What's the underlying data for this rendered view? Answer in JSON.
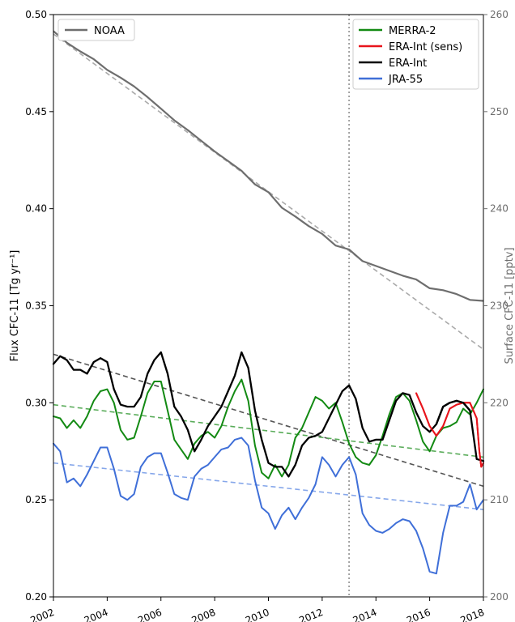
{
  "chart_data": {
    "type": "line",
    "xlabel": "",
    "ylabel": "Flux CFC-11 [Tg yr⁻¹]",
    "ylabel_right": "Surface CFC-11 [pptv]",
    "xlim": [
      2002,
      2018
    ],
    "ylim": [
      0.2,
      0.5
    ],
    "ylim_right": [
      200,
      260
    ],
    "x_ticks": [
      2002,
      2004,
      2006,
      2008,
      2010,
      2012,
      2014,
      2016,
      2018
    ],
    "y_ticks": [
      "0.20",
      "0.25",
      "0.30",
      "0.35",
      "0.40",
      "0.45",
      "0.50"
    ],
    "y_ticks_right": [
      "200",
      "210",
      "220",
      "230",
      "240",
      "250",
      "260"
    ],
    "vline_x": 2013,
    "legend_left": [
      "NOAA"
    ],
    "legend_right": [
      "MERRA-2",
      "ERA-Int (sens)",
      "ERA-Int",
      "JRA-55"
    ],
    "colors": {
      "NOAA": "#6e6e6e",
      "MERRA-2": "#138a13",
      "ERA-Int (sens)": "#e8141c",
      "ERA-Int": "#000000",
      "JRA-55": "#3f6fd8"
    },
    "noaa_axis": "right",
    "noaa": {
      "x": [
        2002.0,
        2002.5,
        2003.0,
        2003.5,
        2004.0,
        2004.5,
        2005.0,
        2005.5,
        2006.0,
        2006.5,
        2007.0,
        2007.5,
        2008.0,
        2008.5,
        2009.0,
        2009.5,
        2010.0,
        2010.5,
        2011.0,
        2011.5,
        2012.0,
        2012.5,
        2013.0,
        2013.5,
        2014.0,
        2014.5,
        2015.0,
        2015.5,
        2016.0,
        2016.5,
        2017.0,
        2017.5,
        2018.0
      ],
      "y": [
        258.3,
        257.1,
        256.2,
        255.4,
        254.3,
        253.5,
        252.6,
        251.5,
        250.3,
        249.1,
        248.1,
        247.0,
        245.9,
        244.9,
        243.9,
        242.5,
        241.7,
        240.1,
        239.2,
        238.2,
        237.4,
        236.2,
        235.8,
        234.6,
        234.1,
        233.6,
        233.1,
        232.7,
        231.8,
        231.6,
        231.2,
        230.6,
        230.5
      ]
    },
    "noaa_trend": {
      "x": [
        2002,
        2018
      ],
      "y": [
        258.0,
        225.5
      ]
    },
    "series": [
      {
        "name": "MERRA-2",
        "x": [
          2002.0,
          2002.25,
          2002.5,
          2002.75,
          2003.0,
          2003.25,
          2003.5,
          2003.75,
          2004.0,
          2004.25,
          2004.5,
          2004.75,
          2005.0,
          2005.25,
          2005.5,
          2005.75,
          2006.0,
          2006.25,
          2006.5,
          2006.75,
          2007.0,
          2007.25,
          2007.5,
          2007.75,
          2008.0,
          2008.25,
          2008.5,
          2008.75,
          2009.0,
          2009.25,
          2009.5,
          2009.75,
          2010.0,
          2010.25,
          2010.5,
          2010.75,
          2011.0,
          2011.25,
          2011.5,
          2011.75,
          2012.0,
          2012.25,
          2012.5,
          2012.75,
          2013.0,
          2013.25,
          2013.5,
          2013.75,
          2014.0,
          2014.25,
          2014.5,
          2014.75,
          2015.0,
          2015.25,
          2015.5,
          2015.75,
          2016.0,
          2016.25,
          2016.5,
          2016.75,
          2017.0,
          2017.25,
          2017.5,
          2017.75,
          2018.0
        ],
        "values": [
          0.293,
          0.292,
          0.287,
          0.291,
          0.287,
          0.293,
          0.301,
          0.306,
          0.307,
          0.3,
          0.286,
          0.281,
          0.282,
          0.293,
          0.305,
          0.311,
          0.311,
          0.296,
          0.281,
          0.276,
          0.271,
          0.279,
          0.283,
          0.285,
          0.282,
          0.288,
          0.298,
          0.306,
          0.312,
          0.301,
          0.278,
          0.264,
          0.261,
          0.268,
          0.262,
          0.268,
          0.282,
          0.287,
          0.295,
          0.303,
          0.301,
          0.297,
          0.3,
          0.29,
          0.279,
          0.272,
          0.269,
          0.268,
          0.273,
          0.283,
          0.294,
          0.303,
          0.305,
          0.301,
          0.291,
          0.28,
          0.275,
          0.283,
          0.287,
          0.288,
          0.29,
          0.297,
          0.294,
          0.3,
          0.307
        ]
      },
      {
        "name": "ERA-Int (sens)",
        "x": [
          2015.5,
          2015.75,
          2016.0,
          2016.25,
          2016.5,
          2016.75,
          2017.0,
          2017.25,
          2017.5,
          2017.75,
          2017.85,
          2017.92,
          2018.0
        ],
        "values": [
          0.305,
          0.297,
          0.288,
          0.283,
          0.288,
          0.297,
          0.299,
          0.3,
          0.3,
          0.292,
          0.275,
          0.267,
          0.269
        ]
      },
      {
        "name": "ERA-Int",
        "x": [
          2002.0,
          2002.25,
          2002.5,
          2002.75,
          2003.0,
          2003.25,
          2003.5,
          2003.75,
          2004.0,
          2004.25,
          2004.5,
          2004.75,
          2005.0,
          2005.25,
          2005.5,
          2005.75,
          2006.0,
          2006.25,
          2006.5,
          2006.75,
          2007.0,
          2007.25,
          2007.5,
          2007.75,
          2008.0,
          2008.25,
          2008.5,
          2008.75,
          2009.0,
          2009.25,
          2009.5,
          2009.75,
          2010.0,
          2010.25,
          2010.5,
          2010.75,
          2011.0,
          2011.25,
          2011.5,
          2011.75,
          2012.0,
          2012.25,
          2012.5,
          2012.75,
          2013.0,
          2013.25,
          2013.5,
          2013.75,
          2014.0,
          2014.25,
          2014.5,
          2014.75,
          2015.0,
          2015.25,
          2015.5,
          2015.75,
          2016.0,
          2016.25,
          2016.5,
          2016.75,
          2017.0,
          2017.25,
          2017.5,
          2017.75,
          2018.0
        ],
        "values": [
          0.32,
          0.324,
          0.322,
          0.317,
          0.317,
          0.315,
          0.321,
          0.323,
          0.321,
          0.307,
          0.299,
          0.298,
          0.298,
          0.303,
          0.315,
          0.322,
          0.326,
          0.315,
          0.298,
          0.293,
          0.286,
          0.275,
          0.281,
          0.288,
          0.293,
          0.298,
          0.306,
          0.314,
          0.326,
          0.318,
          0.296,
          0.281,
          0.269,
          0.267,
          0.267,
          0.262,
          0.268,
          0.278,
          0.282,
          0.283,
          0.285,
          0.292,
          0.299,
          0.306,
          0.309,
          0.302,
          0.287,
          0.28,
          0.281,
          0.281,
          0.291,
          0.301,
          0.305,
          0.304,
          0.295,
          0.288,
          0.285,
          0.289,
          0.298,
          0.3,
          0.301,
          0.3,
          0.296,
          0.271,
          0.27
        ]
      },
      {
        "name": "JRA-55",
        "x": [
          2002.0,
          2002.25,
          2002.5,
          2002.75,
          2003.0,
          2003.25,
          2003.5,
          2003.75,
          2004.0,
          2004.25,
          2004.5,
          2004.75,
          2005.0,
          2005.25,
          2005.5,
          2005.75,
          2006.0,
          2006.25,
          2006.5,
          2006.75,
          2007.0,
          2007.25,
          2007.5,
          2007.75,
          2008.0,
          2008.25,
          2008.5,
          2008.75,
          2009.0,
          2009.25,
          2009.5,
          2009.75,
          2010.0,
          2010.25,
          2010.5,
          2010.75,
          2011.0,
          2011.25,
          2011.5,
          2011.75,
          2012.0,
          2012.25,
          2012.5,
          2012.75,
          2013.0,
          2013.25,
          2013.5,
          2013.75,
          2014.0,
          2014.25,
          2014.5,
          2014.75,
          2015.0,
          2015.25,
          2015.5,
          2015.75,
          2016.0,
          2016.25,
          2016.5,
          2016.75,
          2017.0,
          2017.25,
          2017.5,
          2017.75,
          2018.0
        ],
        "values": [
          0.279,
          0.275,
          0.259,
          0.261,
          0.257,
          0.263,
          0.27,
          0.277,
          0.277,
          0.266,
          0.252,
          0.25,
          0.253,
          0.267,
          0.272,
          0.274,
          0.274,
          0.264,
          0.253,
          0.251,
          0.25,
          0.262,
          0.266,
          0.268,
          0.272,
          0.276,
          0.277,
          0.281,
          0.282,
          0.278,
          0.26,
          0.246,
          0.243,
          0.235,
          0.242,
          0.246,
          0.24,
          0.246,
          0.251,
          0.258,
          0.272,
          0.268,
          0.262,
          0.268,
          0.272,
          0.263,
          0.243,
          0.237,
          0.234,
          0.233,
          0.235,
          0.238,
          0.24,
          0.239,
          0.234,
          0.225,
          0.213,
          0.212,
          0.233,
          0.247,
          0.247,
          0.249,
          0.258,
          0.245,
          0.25
        ]
      }
    ],
    "trends": [
      {
        "name": "ERA-Int",
        "x": [
          2002,
          2018
        ],
        "values": [
          0.325,
          0.257
        ]
      },
      {
        "name": "MERRA-2",
        "x": [
          2002,
          2018
        ],
        "values": [
          0.299,
          0.272
        ]
      },
      {
        "name": "JRA-55",
        "x": [
          2002,
          2018
        ],
        "values": [
          0.269,
          0.245
        ]
      }
    ]
  }
}
